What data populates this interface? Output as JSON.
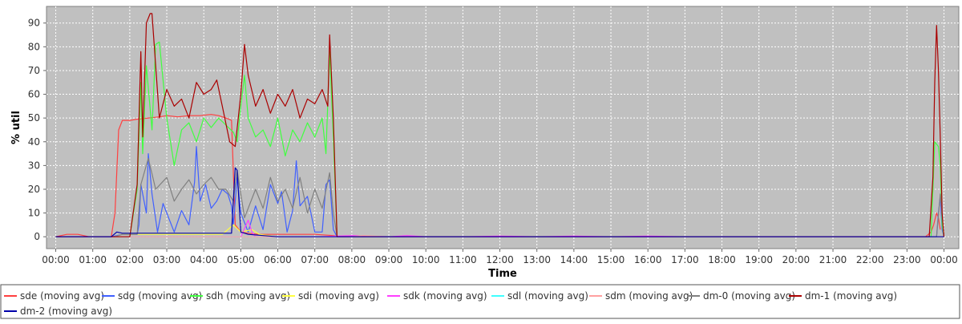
{
  "chart_data": {
    "type": "line",
    "xlabel": "Time",
    "ylabel": "% util",
    "ylim": [
      -5,
      97
    ],
    "xlim": [
      -0.25,
      24.4
    ],
    "yticks": [
      0,
      10,
      20,
      30,
      40,
      50,
      60,
      70,
      80,
      90
    ],
    "xticks": [
      "00:00",
      "01:00",
      "02:00",
      "03:00",
      "04:00",
      "05:00",
      "06:00",
      "07:00",
      "08:00",
      "09:00",
      "10:00",
      "11:00",
      "12:00",
      "13:00",
      "14:00",
      "15:00",
      "16:00",
      "17:00",
      "18:00",
      "19:00",
      "20:00",
      "21:00",
      "22:00",
      "23:00",
      "00:00"
    ],
    "grid": true,
    "legend_position": "bottom",
    "x_unit": "hours since 00:00",
    "series": [
      {
        "name": "sde (moving avg)",
        "color": "#ff4040",
        "x": [
          0,
          0.3,
          0.6,
          0.9,
          1.2,
          1.5,
          1.6,
          1.7,
          1.8,
          2.0,
          2.2,
          2.5,
          2.8,
          3.0,
          3.3,
          3.6,
          3.9,
          4.2,
          4.4,
          4.6,
          4.75,
          4.85,
          5.0,
          5.2,
          5.5,
          6.0,
          6.5,
          7.0,
          7.5,
          7.7,
          8.0,
          9.0,
          10.0,
          11.0,
          12.0,
          13.0,
          14.0,
          15.0,
          16.0,
          17.0,
          17.2,
          17.3,
          17.4,
          17.5,
          18.0,
          19.0,
          20.0,
          21.0,
          22.0,
          23.0,
          23.5,
          23.65,
          23.72,
          23.8,
          23.85,
          23.9
        ],
        "y": [
          0,
          1,
          1,
          0,
          0,
          0,
          10,
          45,
          49,
          49,
          49.5,
          50,
          50.5,
          51,
          50.5,
          51,
          51,
          51.5,
          51,
          50,
          49,
          5,
          2,
          1.5,
          1,
          1,
          1,
          1,
          0.5,
          0,
          0,
          0,
          0,
          0,
          0,
          0,
          0,
          0,
          0,
          0,
          0,
          0,
          0,
          0,
          0,
          0,
          0,
          0,
          0,
          0,
          0,
          2,
          5,
          10,
          8,
          3
        ]
      },
      {
        "name": "sdg (moving avg)",
        "color": "#4060ff",
        "x": [
          0,
          1.5,
          1.8,
          2.0,
          2.2,
          2.25,
          2.3,
          2.45,
          2.5,
          2.6,
          2.75,
          2.9,
          3.0,
          3.2,
          3.4,
          3.6,
          3.75,
          3.8,
          3.9,
          4.05,
          4.2,
          4.35,
          4.5,
          4.65,
          4.75,
          4.8,
          4.9,
          5.0,
          5.2,
          5.4,
          5.5,
          5.6,
          5.8,
          6.0,
          6.1,
          6.25,
          6.4,
          6.5,
          6.6,
          6.8,
          7.0,
          7.2,
          7.3,
          7.4,
          7.5,
          7.6,
          8.0,
          23.8,
          23.85,
          23.9,
          23.95,
          24.0
        ],
        "y": [
          0,
          0,
          1,
          1,
          1,
          5,
          22,
          10,
          35,
          18,
          2,
          14,
          10,
          2,
          11,
          5,
          23,
          38,
          15,
          22,
          12,
          15,
          20,
          18,
          13,
          5,
          25,
          10,
          2,
          13,
          8,
          3,
          22,
          14,
          19,
          2,
          11,
          32,
          13,
          17,
          2,
          2,
          22,
          24,
          3,
          0,
          0,
          0,
          10,
          17,
          3,
          0
        ]
      },
      {
        "name": "sdh (moving avg)",
        "color": "#40ff40",
        "x": [
          0,
          2.0,
          2.2,
          2.3,
          2.35,
          2.45,
          2.6,
          2.7,
          2.8,
          3.0,
          3.2,
          3.4,
          3.6,
          3.8,
          4.0,
          4.2,
          4.4,
          4.6,
          4.8,
          4.9,
          5.0,
          5.1,
          5.2,
          5.4,
          5.6,
          5.8,
          6.0,
          6.2,
          6.4,
          6.6,
          6.8,
          7.0,
          7.2,
          7.3,
          7.4,
          7.5,
          7.6,
          8.0,
          23.65,
          23.75,
          23.85,
          23.9,
          23.95,
          24.0
        ],
        "y": [
          0,
          0,
          20,
          65,
          35,
          72,
          45,
          81,
          82,
          50,
          30,
          45,
          48,
          40,
          50,
          46,
          50,
          47,
          44,
          40,
          55,
          68,
          50,
          42,
          45,
          38,
          50,
          34,
          45,
          40,
          48,
          42,
          50,
          35,
          78,
          42,
          0,
          0,
          0,
          40,
          38,
          30,
          5,
          0
        ]
      },
      {
        "name": "sdi (moving avg)",
        "color": "#ffff40",
        "x": [
          0,
          1.6,
          1.8,
          2.0,
          3.0,
          4.0,
          4.5,
          4.8,
          5.0,
          5.3,
          5.5,
          6.0,
          7.0,
          8.0,
          24.0
        ],
        "y": [
          0,
          0,
          1,
          1,
          1,
          1,
          1,
          5,
          2,
          3,
          1,
          0,
          0,
          0,
          0
        ]
      },
      {
        "name": "sdk (moving avg)",
        "color": "#ff40ff",
        "x": [
          0,
          5.0,
          5.2,
          5.3,
          5.4,
          6.0,
          7.0,
          8.0,
          9.0,
          9.5,
          10.0,
          11.0,
          12.0,
          13.0,
          14.0,
          15.0,
          16.0,
          17.0,
          18.0,
          24.0
        ],
        "y": [
          0,
          0,
          7,
          2,
          0,
          0,
          0,
          0.5,
          0,
          0.5,
          0,
          0,
          0.3,
          0,
          0.3,
          0,
          0.3,
          0,
          0,
          0
        ]
      },
      {
        "name": "sdl (moving avg)",
        "color": "#40ffff",
        "x": [
          0,
          24.0
        ],
        "y": [
          0,
          0
        ]
      },
      {
        "name": "sdm (moving avg)",
        "color": "#ffa0a0",
        "x": [
          0,
          8.0,
          8.3,
          8.6,
          9.0,
          10.0,
          12.0,
          24.0
        ],
        "y": [
          0,
          0,
          0.5,
          0.3,
          0,
          0,
          0,
          0
        ]
      },
      {
        "name": "dm-0 (moving avg)",
        "color": "#808080",
        "x": [
          0,
          1.6,
          1.8,
          2.0,
          2.2,
          2.3,
          2.5,
          2.7,
          3.0,
          3.2,
          3.4,
          3.6,
          3.8,
          4.0,
          4.2,
          4.4,
          4.6,
          4.8,
          4.9,
          5.1,
          5.4,
          5.6,
          5.8,
          6.0,
          6.2,
          6.4,
          6.6,
          6.8,
          7.0,
          7.2,
          7.4,
          7.5,
          7.6,
          8.0,
          23.8,
          23.9,
          24.0
        ],
        "y": [
          0,
          0,
          1,
          1,
          1,
          22,
          33,
          20,
          25,
          15,
          20,
          24,
          18,
          22,
          25,
          20,
          20,
          15,
          28,
          8,
          20,
          12,
          25,
          15,
          20,
          12,
          25,
          10,
          20,
          12,
          27,
          10,
          0,
          0,
          0,
          18,
          0
        ],
        "hidden_legend_visual": false
      },
      {
        "name": "dm-1 (moving avg)",
        "color": "#aa0000",
        "x": [
          0,
          2.0,
          2.2,
          2.3,
          2.35,
          2.45,
          2.55,
          2.6,
          2.8,
          3.0,
          3.2,
          3.4,
          3.6,
          3.8,
          4.0,
          4.2,
          4.35,
          4.5,
          4.7,
          4.85,
          5.0,
          5.1,
          5.2,
          5.4,
          5.6,
          5.8,
          6.0,
          6.2,
          6.4,
          6.6,
          6.8,
          7.0,
          7.2,
          7.35,
          7.4,
          7.5,
          7.6,
          8.0,
          23.6,
          23.7,
          23.75,
          23.8,
          23.85,
          23.9,
          23.95,
          24.0
        ],
        "y": [
          0,
          0,
          22,
          78,
          42,
          90,
          94,
          94,
          50,
          62,
          55,
          58,
          50,
          65,
          60,
          62,
          66,
          55,
          40,
          38,
          60,
          81,
          68,
          55,
          62,
          52,
          60,
          55,
          62,
          50,
          58,
          56,
          62,
          55,
          85,
          50,
          0,
          0,
          0,
          25,
          65,
          89,
          70,
          42,
          10,
          0
        ]
      },
      {
        "name": "dm-2 (moving avg)",
        "color": "#0000aa",
        "x": [
          0,
          1.5,
          1.65,
          1.8,
          2.0,
          2.2,
          3.0,
          4.0,
          4.5,
          4.75,
          4.85,
          4.9,
          5.0,
          5.2,
          6.0,
          8.0,
          24.0
        ],
        "y": [
          0,
          0,
          2,
          1.5,
          1.5,
          1.5,
          1.5,
          1.5,
          1.5,
          1.5,
          29,
          28,
          2,
          1,
          0,
          0,
          0
        ]
      }
    ]
  }
}
